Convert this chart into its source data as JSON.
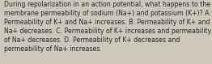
{
  "lines": [
    "During repolarization in an action potential, what happens to the",
    "membrane permeability of sodium (Na+) and potassium (K+)? A.",
    "Permeability of K+ and Na+ increases. B. Permeability of K+ and",
    "Na+ decreases. C. Permeability of K+ increases and permeability",
    "of Na+ decreases. D. Permeability of K+ decreases and",
    "permeability of Na+ increases."
  ],
  "background_color": "#cdc8bb",
  "text_color": "#2a2520",
  "font_size": 5.55,
  "fig_width": 2.62,
  "fig_height": 0.79,
  "dpi": 100
}
